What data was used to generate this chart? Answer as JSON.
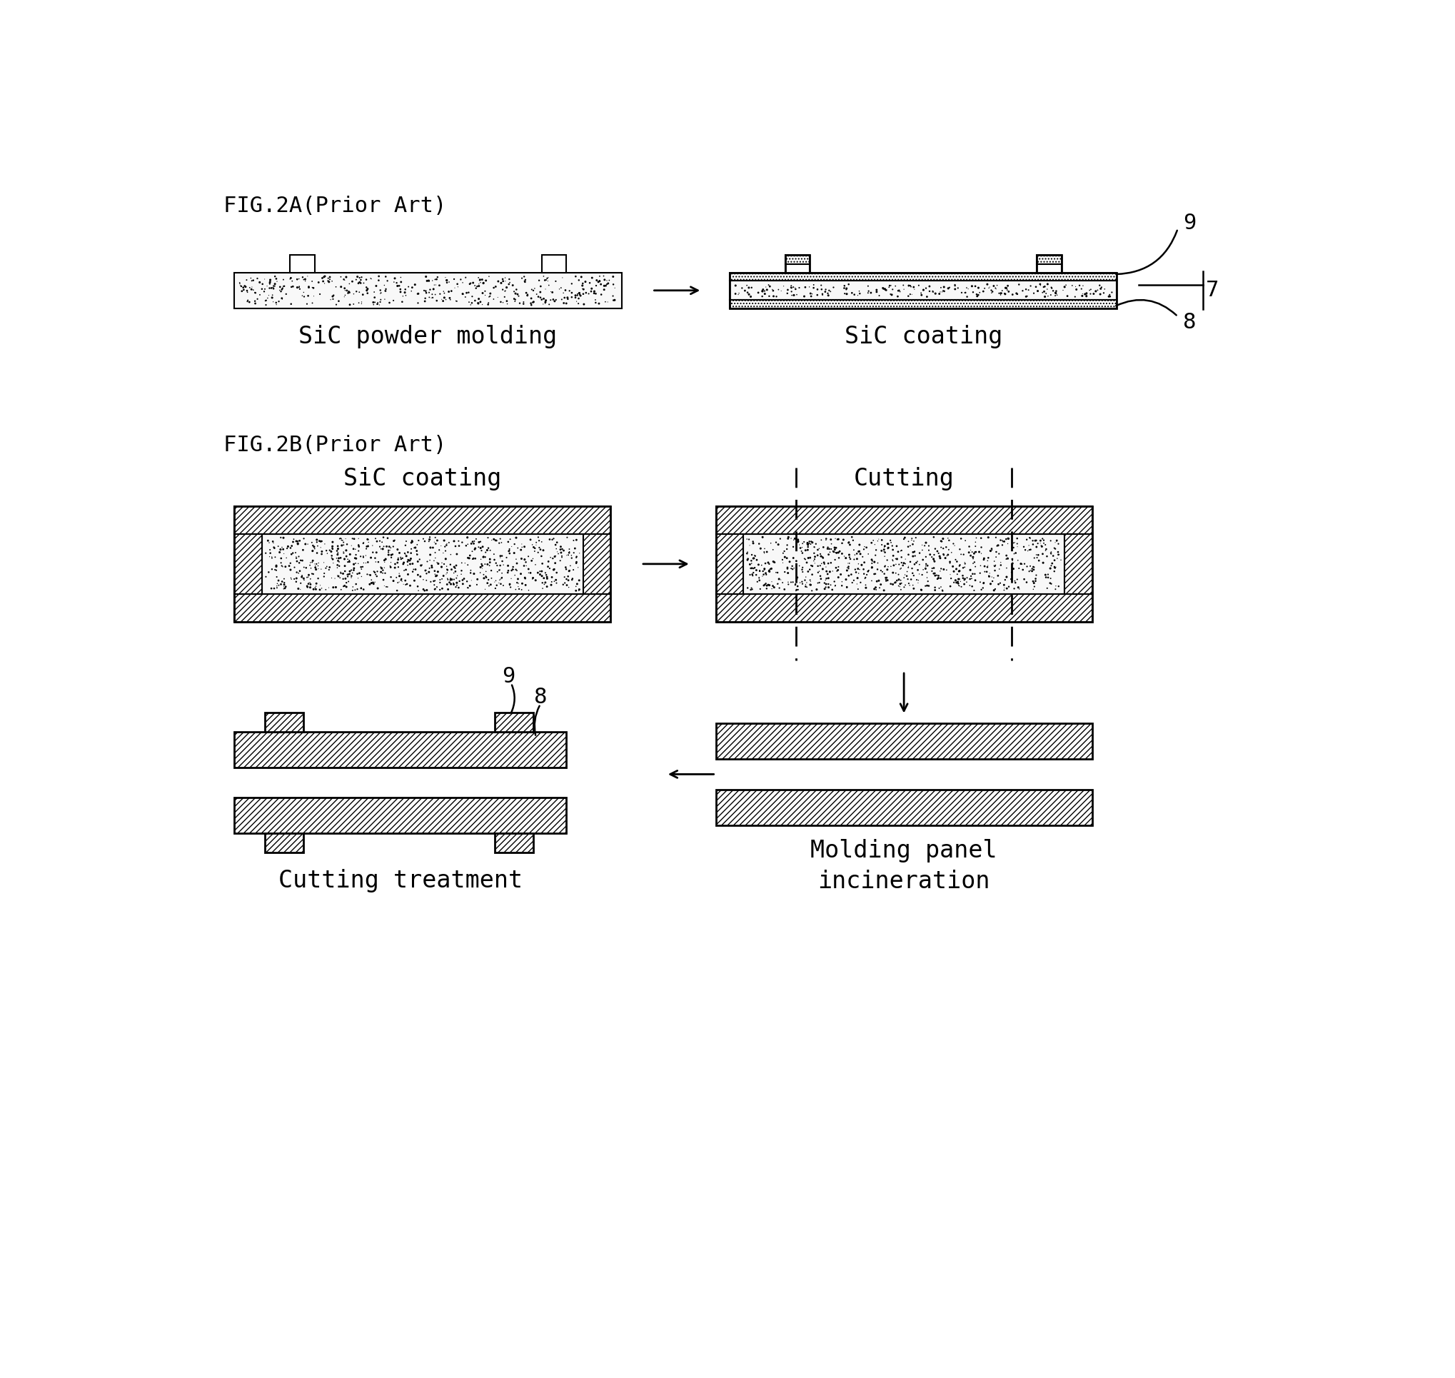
{
  "fig_title_a": "FIG.2A(Prior Art)",
  "fig_title_b": "FIG.2B(Prior Art)",
  "label_sic_powder": "SiC powder molding",
  "label_sic_coating_a": "SiC coating",
  "label_sic_coating_b": "SiC coating",
  "label_cutting": "Cutting",
  "label_cutting_treatment": "Cutting treatment",
  "label_molding": "Molding panel\nincineration",
  "bg_color": "#ffffff",
  "line_color": "#000000"
}
